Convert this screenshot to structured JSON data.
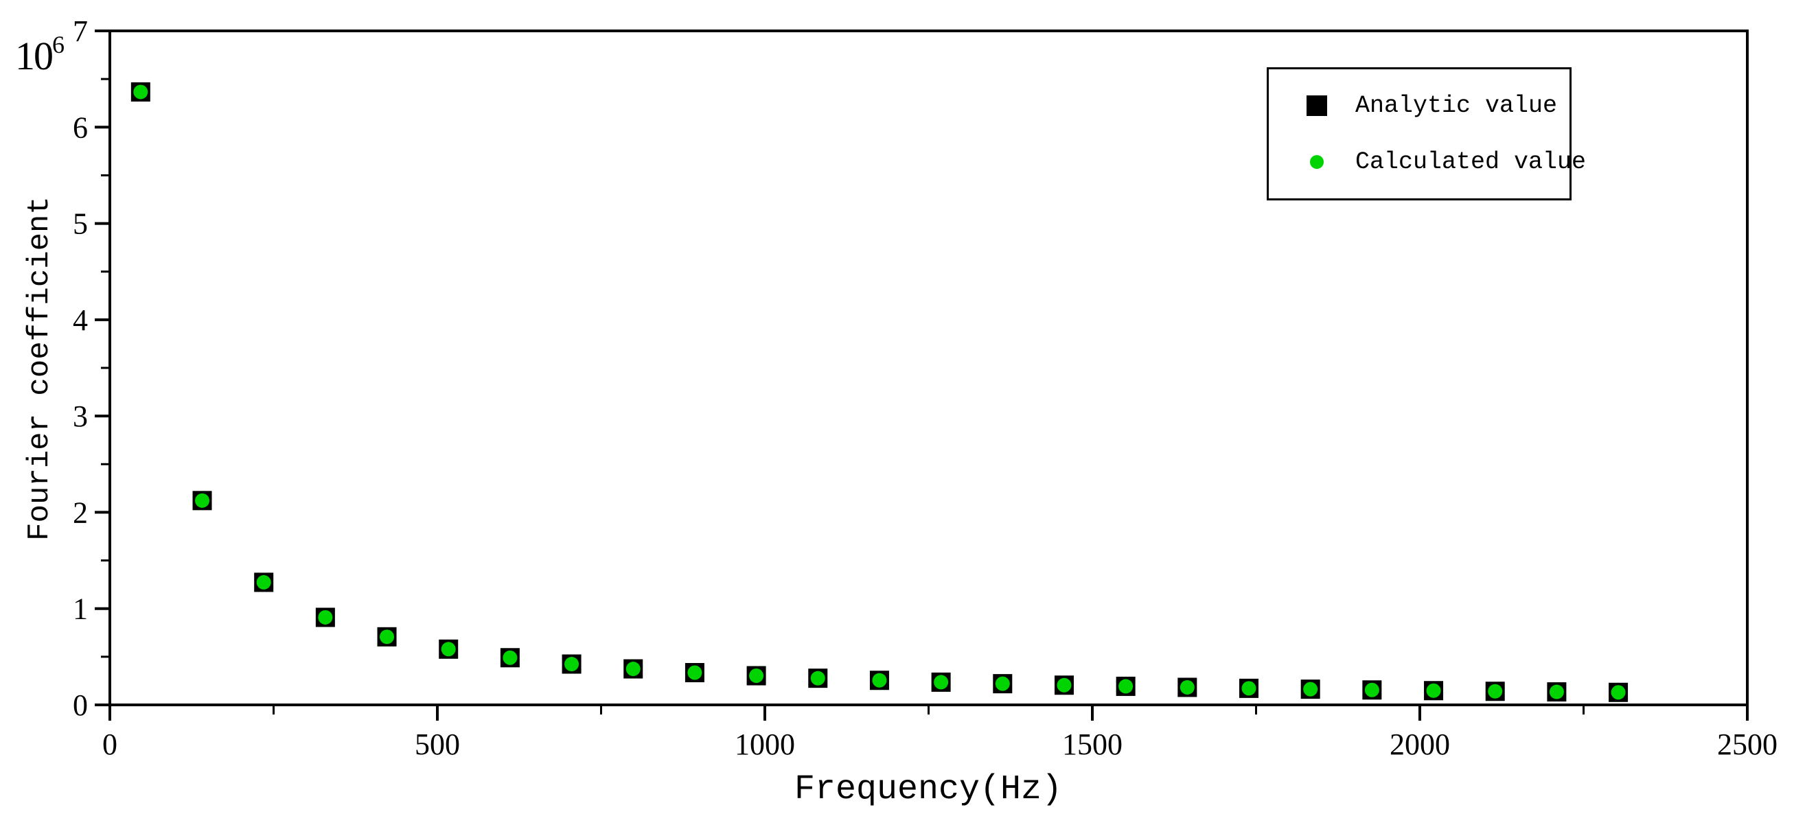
{
  "chart_data": {
    "type": "scatter",
    "title": "",
    "xlabel": "Frequency(Hz)",
    "ylabel": "Fourier coefficient",
    "y_scale_multiplier": {
      "base": "10",
      "exponent": "6"
    },
    "x_range": [
      0,
      2500
    ],
    "y_range": [
      0,
      7
    ],
    "x_major_tick_labels": [
      "0",
      "500",
      "1000",
      "1500",
      "2000",
      "2500"
    ],
    "y_major_tick_labels": [
      "0",
      "1",
      "2",
      "3",
      "4",
      "5",
      "6",
      "7"
    ],
    "x_minor_tick_step": 250,
    "y_minor_tick_step": 0.5,
    "grid": false,
    "values_unit": "x10^6",
    "x": [
      47,
      141,
      235,
      329,
      423,
      517,
      611,
      705,
      799,
      893,
      987,
      1081,
      1175,
      1269,
      1363,
      1457,
      1551,
      1645,
      1739,
      1833,
      1927,
      2021,
      2115,
      2209,
      2303
    ],
    "series": [
      {
        "name": "Analytic value",
        "marker": "square",
        "color": "#000000",
        "marker_size": 28,
        "values": [
          6.366,
          2.122,
          1.273,
          0.909,
          0.707,
          0.579,
          0.49,
          0.424,
          0.374,
          0.335,
          0.303,
          0.277,
          0.255,
          0.236,
          0.22,
          0.205,
          0.193,
          0.182,
          0.172,
          0.163,
          0.155,
          0.148,
          0.141,
          0.135,
          0.13
        ]
      },
      {
        "name": "Calculated value",
        "marker": "circle",
        "color": "#00d400",
        "marker_size": 21,
        "values": [
          6.366,
          2.122,
          1.273,
          0.909,
          0.707,
          0.579,
          0.49,
          0.424,
          0.374,
          0.335,
          0.303,
          0.277,
          0.255,
          0.236,
          0.22,
          0.205,
          0.193,
          0.182,
          0.172,
          0.163,
          0.155,
          0.148,
          0.141,
          0.135,
          0.13
        ]
      }
    ],
    "legend_position": "top-right"
  },
  "legend": {
    "entries": [
      {
        "label": "Analytic value",
        "marker": "square",
        "color": "#000000"
      },
      {
        "label": "Calculated value",
        "marker": "circle",
        "color": "#00d400"
      }
    ]
  },
  "colors": {
    "accent_green": "#00d400",
    "axis_black": "#000000",
    "background": "#ffffff"
  }
}
